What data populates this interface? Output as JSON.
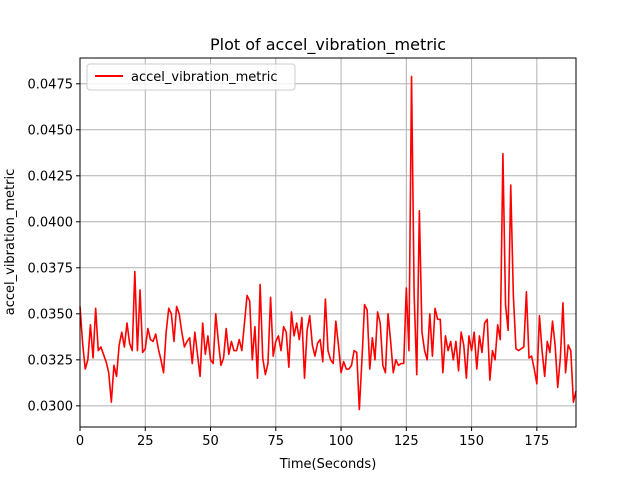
{
  "chart_data": {
    "type": "line",
    "title": "Plot of accel_vibration_metric",
    "xlabel": "Time(Seconds)",
    "ylabel": "accel_vibration_metric",
    "xlim": [
      0,
      190
    ],
    "ylim": [
      0.02885,
      0.0489
    ],
    "xticks": [
      0,
      25,
      50,
      75,
      100,
      125,
      150,
      175
    ],
    "xtick_labels": [
      "0",
      "25",
      "50",
      "75",
      "100",
      "125",
      "150",
      "175"
    ],
    "yticks": [
      0.03,
      0.0325,
      0.035,
      0.0375,
      0.04,
      0.0425,
      0.045,
      0.0475
    ],
    "ytick_labels": [
      "0.0300",
      "0.0325",
      "0.0350",
      "0.0375",
      "0.0400",
      "0.0425",
      "0.0450",
      "0.0475"
    ],
    "grid": true,
    "legend_position": "top-left",
    "series": [
      {
        "name": "accel_vibration_metric",
        "color": "#ff0000",
        "x": [
          0,
          1,
          2,
          3,
          4,
          5,
          6,
          7,
          8,
          9,
          10,
          11,
          12,
          13,
          14,
          15,
          16,
          17,
          18,
          19,
          20,
          21,
          22,
          23,
          24,
          25,
          26,
          27,
          28,
          29,
          30,
          31,
          32,
          33,
          34,
          35,
          36,
          37,
          38,
          39,
          40,
          41,
          42,
          43,
          44,
          45,
          46,
          47,
          48,
          49,
          50,
          51,
          52,
          53,
          54,
          55,
          56,
          57,
          58,
          59,
          60,
          61,
          62,
          63,
          64,
          65,
          66,
          67,
          68,
          69,
          70,
          71,
          72,
          73,
          74,
          75,
          76,
          77,
          78,
          79,
          80,
          81,
          82,
          83,
          84,
          85,
          86,
          87,
          88,
          89,
          90,
          91,
          92,
          93,
          94,
          95,
          96,
          97,
          98,
          99,
          100,
          101,
          102,
          103,
          104,
          105,
          106,
          107,
          108,
          109,
          110,
          111,
          112,
          113,
          114,
          115,
          116,
          117,
          118,
          119,
          120,
          121,
          122,
          123,
          124,
          125,
          126,
          127,
          128,
          129,
          130,
          131,
          132,
          133,
          134,
          135,
          136,
          137,
          138,
          139,
          140,
          141,
          142,
          143,
          144,
          145,
          146,
          147,
          148,
          149,
          150,
          151,
          152,
          153,
          154,
          155,
          156,
          157,
          158,
          159,
          160,
          161,
          162,
          163,
          164,
          165,
          166,
          167,
          168,
          169,
          170,
          171,
          172,
          173,
          174,
          175,
          176,
          177,
          178,
          179,
          180,
          181,
          182,
          183,
          184,
          185,
          186,
          187,
          188,
          189,
          190
        ],
        "y": [
          0.0354,
          0.0334,
          0.032,
          0.0325,
          0.0344,
          0.0326,
          0.0353,
          0.033,
          0.0332,
          0.0328,
          0.0324,
          0.0318,
          0.0302,
          0.0322,
          0.0316,
          0.0333,
          0.034,
          0.0332,
          0.0345,
          0.0334,
          0.033,
          0.0373,
          0.033,
          0.0363,
          0.0329,
          0.0331,
          0.0342,
          0.0336,
          0.0335,
          0.0339,
          0.0331,
          0.0325,
          0.0318,
          0.034,
          0.0353,
          0.035,
          0.0335,
          0.0354,
          0.035,
          0.034,
          0.0332,
          0.0335,
          0.0337,
          0.0323,
          0.034,
          0.0328,
          0.0316,
          0.0345,
          0.0328,
          0.0338,
          0.0325,
          0.0323,
          0.035,
          0.0335,
          0.0322,
          0.0326,
          0.0342,
          0.0328,
          0.0335,
          0.033,
          0.033,
          0.0336,
          0.033,
          0.0345,
          0.036,
          0.0357,
          0.0325,
          0.0343,
          0.0315,
          0.0366,
          0.0326,
          0.0317,
          0.0323,
          0.0359,
          0.0327,
          0.0335,
          0.0338,
          0.033,
          0.0343,
          0.034,
          0.0321,
          0.0351,
          0.0338,
          0.0345,
          0.0336,
          0.0348,
          0.0315,
          0.0341,
          0.0349,
          0.0333,
          0.0327,
          0.0334,
          0.0336,
          0.0324,
          0.0358,
          0.033,
          0.0325,
          0.0323,
          0.0346,
          0.0333,
          0.0318,
          0.0324,
          0.032,
          0.032,
          0.0322,
          0.033,
          0.0329,
          0.0298,
          0.0325,
          0.0355,
          0.0352,
          0.032,
          0.0337,
          0.0325,
          0.0351,
          0.0345,
          0.0322,
          0.0318,
          0.035,
          0.0335,
          0.0318,
          0.0325,
          0.0322,
          0.0323,
          0.0323,
          0.0364,
          0.033,
          0.0479,
          0.036,
          0.0317,
          0.0406,
          0.034,
          0.033,
          0.0325,
          0.035,
          0.0327,
          0.0353,
          0.0347,
          0.0347,
          0.0318,
          0.0338,
          0.033,
          0.0335,
          0.0325,
          0.0335,
          0.0319,
          0.034,
          0.0333,
          0.0315,
          0.0338,
          0.033,
          0.034,
          0.032,
          0.0338,
          0.0329,
          0.0345,
          0.0347,
          0.0314,
          0.033,
          0.0325,
          0.0344,
          0.0336,
          0.0437,
          0.0355,
          0.0341,
          0.042,
          0.036,
          0.0331,
          0.033,
          0.0331,
          0.0332,
          0.0362,
          0.0326,
          0.0327,
          0.032,
          0.0312,
          0.0349,
          0.033,
          0.0316,
          0.0335,
          0.0329,
          0.0346,
          0.0333,
          0.031,
          0.0326,
          0.0356,
          0.0318,
          0.0333,
          0.033,
          0.0302,
          0.0308
        ]
      }
    ]
  }
}
